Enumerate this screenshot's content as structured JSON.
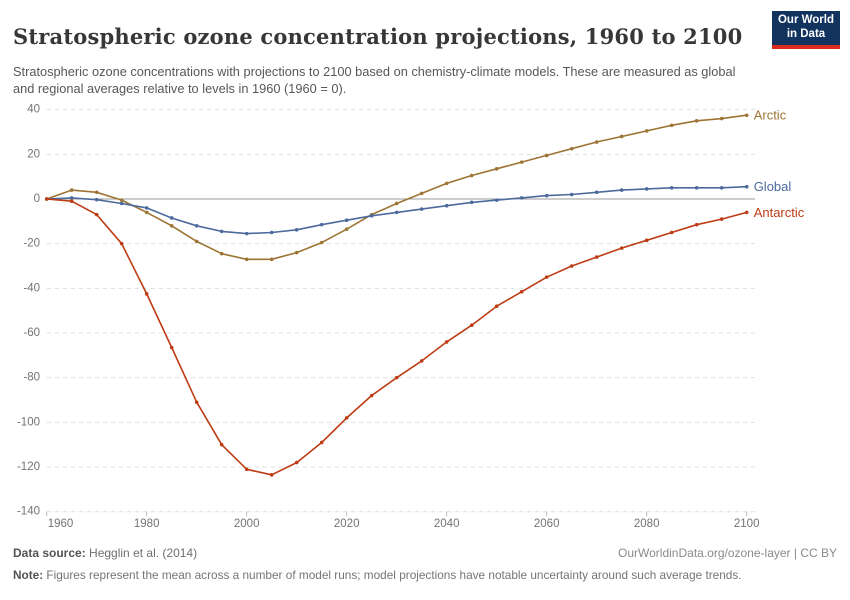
{
  "header": {
    "title": "Stratospheric ozone concentration projections, 1960 to 2100",
    "subtitle": "Stratospheric ozone concentrations with projections to 2100 based on chemistry-climate models. These are measured as global and regional averages relative to levels in 1960 (1960 = 0).",
    "logo": {
      "line1": "Our World",
      "line2": "in Data"
    }
  },
  "chart_data": {
    "type": "line",
    "title": "Stratospheric ozone concentration projections, 1960 to 2100",
    "xlabel": "",
    "ylabel": "",
    "ylim": [
      -140,
      40
    ],
    "ytick_step": 20,
    "xticks": [
      1960,
      1980,
      2000,
      2020,
      2040,
      2060,
      2080,
      2100
    ],
    "grid": "dashed-horizontal",
    "zero_line": true,
    "legend_position": "line-end-labels",
    "marker": "dot",
    "x": [
      1960,
      1965,
      1970,
      1975,
      1980,
      1985,
      1990,
      1995,
      2000,
      2005,
      2010,
      2015,
      2020,
      2025,
      2030,
      2035,
      2040,
      2045,
      2050,
      2055,
      2060,
      2065,
      2070,
      2075,
      2080,
      2085,
      2090,
      2095,
      2100
    ],
    "series": [
      {
        "name": "Arctic",
        "color": "#9d7434",
        "values": [
          0,
          4,
          3,
          -0.5,
          -6,
          -12,
          -19,
          -24.5,
          -27,
          -27,
          -24,
          -19.5,
          -13.5,
          -7,
          -2,
          2.5,
          7,
          10.5,
          13.5,
          16.5,
          19.5,
          22.5,
          25.5,
          28,
          30.5,
          33,
          35,
          36,
          37.5
        ]
      },
      {
        "name": "Global",
        "color": "#4c6a9c",
        "values": [
          0,
          0.5,
          -0.3,
          -2,
          -4,
          -8.5,
          -12,
          -14.5,
          -15.5,
          -15,
          -13.8,
          -11.5,
          -9.5,
          -7.5,
          -6,
          -4.5,
          -3,
          -1.5,
          -0.5,
          0.5,
          1.5,
          2,
          3,
          4,
          4.5,
          5,
          5,
          5,
          5.5
        ]
      },
      {
        "name": "Antarctic",
        "color": "#bd3c14",
        "values": [
          0,
          -1,
          -7,
          -20,
          -42.5,
          -66.5,
          -91,
          -110,
          -121,
          -123.5,
          -118,
          -109,
          -98,
          -88,
          -80,
          -72.5,
          -64,
          -56.5,
          -48,
          -41.5,
          -35,
          -30,
          -26,
          -22,
          -18.5,
          -15,
          -11.5,
          -9,
          -6
        ]
      }
    ]
  },
  "axis_colors": {
    "grid": "#e0e0e0",
    "zero": "#9b9b9b",
    "tick": "#bbbbbb",
    "label": "#737373"
  },
  "footer": {
    "source_label": "Data source:",
    "source_value": " Hegglin et al. (2014)",
    "link": "OurWorldinData.org/ozone-layer | CC BY",
    "note_label": "Note:",
    "note_value": " Figures represent the mean across a number of model runs; model projections have notable uncertainty around such average trends."
  }
}
